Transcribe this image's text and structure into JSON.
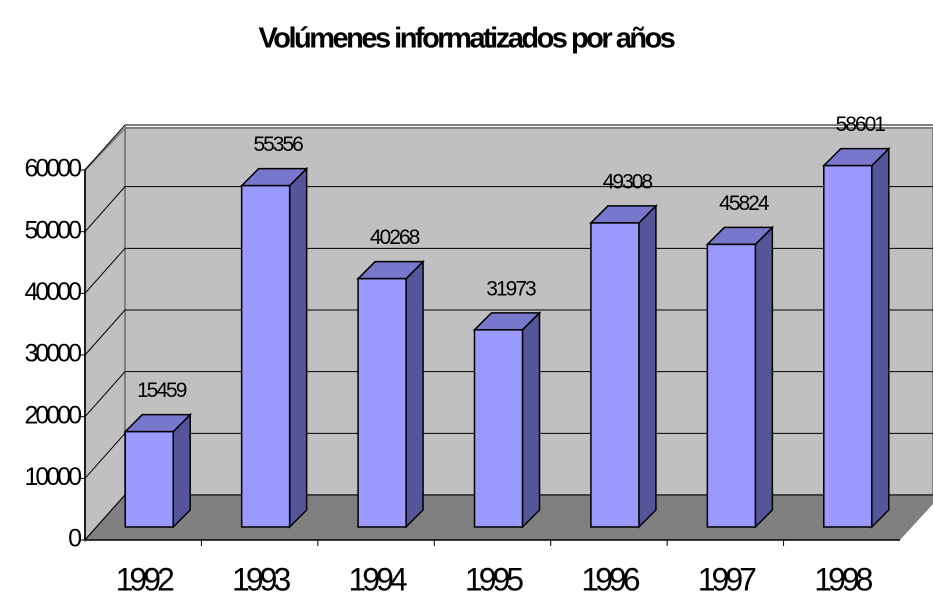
{
  "chart_data": {
    "type": "bar",
    "title": "Volúmenes informatizados por años",
    "categories": [
      "1992",
      "1993",
      "1994",
      "1995",
      "1996",
      "1997",
      "1998"
    ],
    "values": [
      15459,
      55356,
      40268,
      31973,
      49308,
      45824,
      58601
    ],
    "color": "#9999ff",
    "ylim": [
      0,
      60000
    ],
    "yticks": [
      0,
      10000,
      20000,
      30000,
      40000,
      50000,
      60000
    ],
    "grid": true
  }
}
